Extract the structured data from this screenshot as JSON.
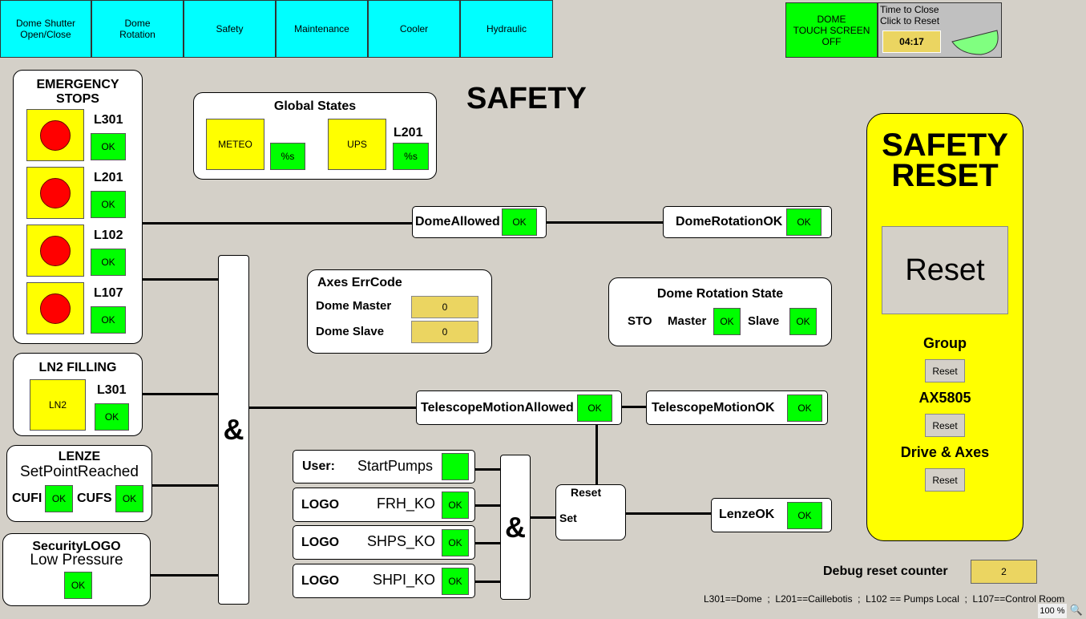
{
  "nav": [
    "Dome Shutter\nOpen/Close",
    "Dome\nRotation",
    "Safety",
    "Maintenance",
    "Cooler",
    "Hydraulic"
  ],
  "touch": {
    "label": "DOME\nTOUCH SCREEN\nOFF"
  },
  "timer": {
    "line1": "Time to Close",
    "line2": "Click to Reset",
    "value": "04:17"
  },
  "title": "SAFETY",
  "estops": {
    "title": "EMERGENCY\nSTOPS",
    "items": [
      {
        "label": "L301",
        "status": "OK"
      },
      {
        "label": "L201",
        "status": "OK"
      },
      {
        "label": "L102",
        "status": "OK"
      },
      {
        "label": "L107",
        "status": "OK"
      }
    ]
  },
  "ln2": {
    "title": "LN2 FILLING",
    "box": "LN2",
    "label": "L301",
    "status": "OK"
  },
  "lenze": {
    "title": "LENZE",
    "subtitle": "SetPointReached",
    "cufi": "CUFI",
    "cufi_status": "OK",
    "cufs": "CUFS",
    "cufs_status": "OK"
  },
  "seclogo": {
    "title": "SecurityLOGO",
    "subtitle": "Low Pressure",
    "status": "OK"
  },
  "global": {
    "title": "Global States",
    "meteo": "METEO",
    "meteo_status": "%s",
    "ups": "UPS",
    "ups_label": "L201",
    "ups_status": "%s"
  },
  "and": "&",
  "dome_allowed": {
    "label": "DomeAllowed",
    "status": "OK"
  },
  "dome_rotation_ok": {
    "label": "DomeRotationOK",
    "status": "OK"
  },
  "axes": {
    "title": "Axes ErrCode",
    "master_label": "Dome Master",
    "master": "0",
    "slave_label": "Dome Slave",
    "slave": "0"
  },
  "drs": {
    "title": "Dome Rotation State",
    "sto": "STO",
    "master": "Master",
    "master_status": "OK",
    "slave": "Slave",
    "slave_status": "OK"
  },
  "tma": {
    "label": "TelescopeMotionAllowed",
    "status": "OK"
  },
  "tmok": {
    "label": "TelescopeMotionOK",
    "status": "OK"
  },
  "user": {
    "prefix": "User:",
    "label": "StartPumps"
  },
  "logos": [
    {
      "prefix": "LOGO",
      "label": "FRH_KO",
      "status": "OK"
    },
    {
      "prefix": "LOGO",
      "label": "SHPS_KO",
      "status": "OK"
    },
    {
      "prefix": "LOGO",
      "label": "SHPI_KO",
      "status": "OK"
    }
  ],
  "latch": {
    "reset": "Reset",
    "set": "Set"
  },
  "lenzeok": {
    "label": "LenzeOK",
    "status": "OK"
  },
  "safety_reset": {
    "title": "SAFETY\nRESET",
    "button": "Reset",
    "groups": [
      {
        "label": "Group",
        "button": "Reset"
      },
      {
        "label": "AX5805",
        "button": "Reset"
      },
      {
        "label": "Drive & Axes",
        "button": "Reset"
      }
    ]
  },
  "debug": {
    "label": "Debug reset counter",
    "value": "2"
  },
  "footer": "L301==Dome  ;  L201==Caillebotis  ;  L102 == Pumps Local  ;  L107==Control Room",
  "zoom": "100 %"
}
